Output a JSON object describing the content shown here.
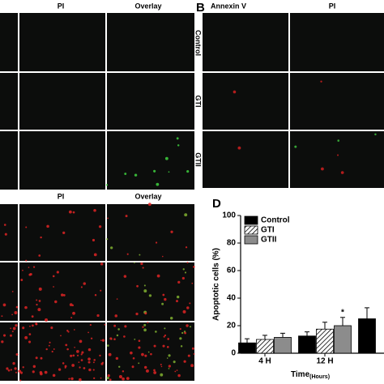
{
  "panels": {
    "A": {
      "columns": [
        "PI",
        "Overlay"
      ]
    },
    "B": {
      "label": "B",
      "columns": [
        "Annexin V",
        "PI"
      ],
      "rows": [
        "Control",
        "GTI",
        "GTII"
      ]
    },
    "C": {
      "columns": [
        "PI",
        "Overlay"
      ]
    }
  },
  "chart_data": {
    "type": "bar",
    "panel_label": "D",
    "ylabel": "Apoptotic cells (%)",
    "xlabel": "Time",
    "xlabel_sub": "(Hours)",
    "categories": [
      "4 H",
      "12 H",
      null
    ],
    "series": [
      {
        "name": "Control",
        "color": "#000000",
        "values": [
          7.5,
          12.5,
          25
        ],
        "errors": [
          3,
          3,
          8
        ]
      },
      {
        "name": "GTI",
        "color": "#ffffff",
        "pattern": "hatch",
        "values": [
          10,
          17.5,
          null
        ],
        "errors": [
          3,
          5,
          null
        ]
      },
      {
        "name": "GTII",
        "color": "#8c8c8c",
        "values": [
          11.5,
          20,
          null
        ],
        "errors": [
          3,
          6,
          null
        ]
      }
    ],
    "annotation": "*",
    "ylim": [
      0,
      100
    ],
    "yticks": [
      0,
      20,
      40,
      60,
      80,
      100
    ]
  }
}
